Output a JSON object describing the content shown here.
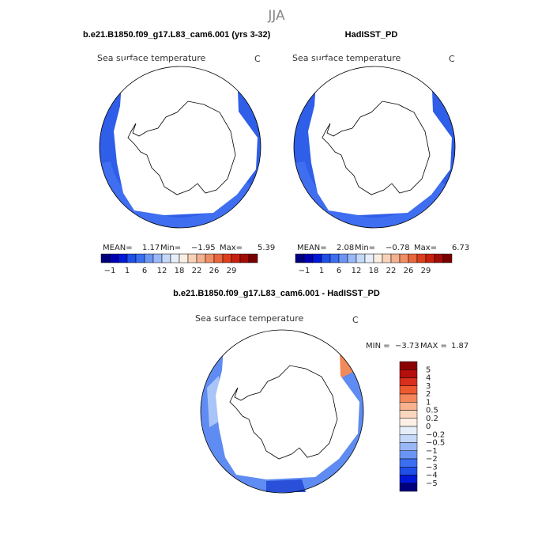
{
  "title": "JJA",
  "panels": [
    {
      "title": "b.e21.B1850.f09_g17.L83_cam6.001 (yrs 3-32)",
      "field": "Sea surface temperature",
      "units": "C",
      "stats": [
        "MEAN=",
        "1.17",
        "Min=",
        "−1.95",
        "Max=",
        "5.39"
      ],
      "colorbar": {
        "labels": [
          "−1",
          "1",
          "6",
          "12",
          "18",
          "22",
          "26",
          "29"
        ]
      }
    },
    {
      "title": "HadISST_PD",
      "field": "Sea surface temperature",
      "units": "C",
      "stats": [
        "MEAN=",
        "2.08",
        "Min=",
        "−0.78",
        "Max=",
        "6.73"
      ],
      "colorbar": {
        "labels": [
          "−1",
          "1",
          "6",
          "12",
          "18",
          "22",
          "26",
          "29"
        ]
      }
    }
  ],
  "difference": {
    "title": "b.e21.B1850.f09_g17.L83_cam6.001 - HadISST_PD",
    "field": "Sea surface temperature",
    "units": "C",
    "stats": [
      "MIN =",
      "−3.73",
      "MAX =",
      "1.87"
    ],
    "colorbar": {
      "labels": [
        "5",
        "4",
        "3",
        "2",
        "1",
        "0.5",
        "0.2",
        "0",
        "−0.2",
        "−0.5",
        "−1",
        "−2",
        "−3",
        "−4",
        "−5"
      ]
    }
  }
}
